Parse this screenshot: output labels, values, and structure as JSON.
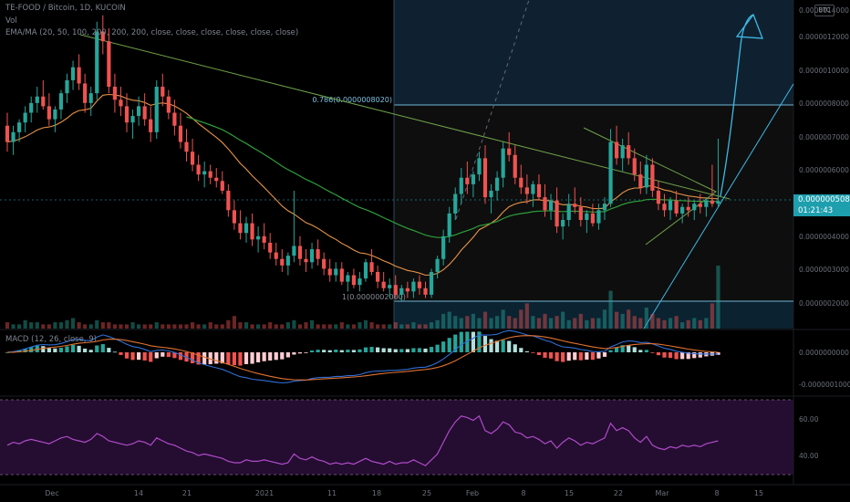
{
  "header": {
    "symbol_line": "TE-FOOD / Bitcoin, 1D, KUCOIN",
    "vol_label": "Vol",
    "ema_line": "EMA/MA (20, 50, 100, 200, 200, 200, close, close, close, close, close, close)",
    "macd_line": "MACD (12, 26, close, 9)",
    "currency_badge": "BTC"
  },
  "price_badge": {
    "value": "0.0000005083",
    "countdown": "01:21:43"
  },
  "colors": {
    "up": "#26a69a",
    "down": "#ef5350",
    "ema_fast": "#e89448",
    "ema_slow": "#2e9e3a",
    "trend": "#6fa34a",
    "fib_level": "#6fb6d6",
    "projection": "#3fb9e6",
    "macd_line": "#2f6fd6",
    "signal_line": "#e0722f",
    "rsi_line": "#b04bc8",
    "rsi_band": "#2a0f3a"
  },
  "chart_data": [
    {
      "type": "candlestick",
      "title": "TE-FOOD / Bitcoin, 1D, KUCOIN",
      "x_ticks": [
        "Dec",
        "14",
        "21",
        "2021",
        "11",
        "18",
        "25",
        "Feb",
        "8",
        "15",
        "22",
        "Mar",
        "8",
        "15"
      ],
      "y_ticks": [
        "0.0000014000",
        "0.0000012000",
        "0.0000010000",
        "0.0000009000",
        "0.0000008000",
        "0.0000007000",
        "0.0000006000",
        "0.0000004000",
        "0.0000003000",
        "0.0000002000",
        "0.0000001000"
      ],
      "fib_labels": [
        "0.786(0.0000008020)",
        "1(0.0000002000)"
      ],
      "last_close": 5.083,
      "value_units": "price x 1e-7 BTC",
      "candles_ohlc": [
        [
          7.4,
          7.8,
          6.6,
          6.9
        ],
        [
          6.9,
          7.4,
          6.5,
          7.2
        ],
        [
          7.2,
          7.6,
          6.9,
          7.5
        ],
        [
          7.5,
          8.0,
          7.2,
          7.8
        ],
        [
          7.8,
          8.3,
          7.5,
          8.1
        ],
        [
          8.1,
          8.6,
          7.8,
          8.3
        ],
        [
          8.3,
          8.8,
          7.9,
          8.0
        ],
        [
          8.0,
          8.4,
          7.4,
          7.6
        ],
        [
          7.6,
          8.0,
          7.2,
          7.9
        ],
        [
          7.9,
          8.5,
          7.6,
          8.4
        ],
        [
          8.4,
          9.0,
          8.1,
          8.8
        ],
        [
          8.8,
          9.4,
          8.5,
          9.2
        ],
        [
          9.2,
          9.6,
          8.5,
          8.7
        ],
        [
          8.7,
          9.0,
          7.8,
          8.1
        ],
        [
          8.1,
          8.6,
          7.7,
          8.4
        ],
        [
          8.4,
          10.6,
          8.2,
          10.3
        ],
        [
          10.3,
          10.8,
          9.6,
          10.0
        ],
        [
          10.0,
          10.4,
          8.4,
          8.6
        ],
        [
          8.6,
          9.0,
          7.8,
          8.2
        ],
        [
          8.2,
          8.6,
          7.7,
          8.0
        ],
        [
          8.0,
          8.4,
          7.2,
          7.5
        ],
        [
          7.5,
          7.9,
          7.0,
          7.7
        ],
        [
          7.7,
          8.3,
          7.4,
          8.0
        ],
        [
          8.0,
          8.4,
          7.4,
          7.6
        ],
        [
          7.6,
          8.0,
          6.9,
          7.2
        ],
        [
          7.2,
          8.8,
          7.0,
          8.6
        ],
        [
          8.6,
          9.0,
          8.0,
          8.3
        ],
        [
          8.3,
          8.5,
          7.6,
          7.8
        ],
        [
          7.8,
          8.2,
          7.1,
          7.4
        ],
        [
          7.4,
          7.8,
          6.7,
          6.9
        ],
        [
          6.9,
          7.3,
          6.3,
          6.6
        ],
        [
          6.6,
          7.0,
          6.0,
          6.2
        ],
        [
          6.2,
          6.5,
          5.7,
          5.9
        ],
        [
          5.9,
          6.3,
          5.5,
          6.0
        ],
        [
          6.0,
          6.2,
          5.6,
          5.8
        ],
        [
          5.8,
          6.1,
          5.5,
          5.7
        ],
        [
          5.7,
          6.0,
          5.3,
          5.4
        ],
        [
          5.4,
          5.6,
          4.6,
          4.8
        ],
        [
          4.8,
          5.1,
          4.2,
          4.4
        ],
        [
          4.4,
          4.8,
          3.9,
          4.1
        ],
        [
          4.1,
          4.6,
          3.8,
          4.4
        ],
        [
          4.4,
          4.7,
          3.7,
          3.9
        ],
        [
          3.9,
          4.3,
          3.5,
          4.0
        ],
        [
          4.0,
          4.4,
          3.6,
          3.8
        ],
        [
          3.8,
          4.1,
          3.3,
          3.5
        ],
        [
          3.5,
          3.8,
          3.1,
          3.3
        ],
        [
          3.3,
          3.6,
          2.9,
          3.1
        ],
        [
          3.1,
          3.5,
          2.8,
          3.4
        ],
        [
          3.4,
          5.4,
          3.2,
          3.7
        ],
        [
          3.7,
          4.0,
          3.1,
          3.3
        ],
        [
          3.3,
          3.6,
          2.9,
          3.2
        ],
        [
          3.2,
          3.8,
          3.0,
          3.6
        ],
        [
          3.6,
          3.9,
          3.1,
          3.3
        ],
        [
          3.3,
          3.5,
          2.8,
          3.0
        ],
        [
          3.0,
          3.3,
          2.6,
          2.8
        ],
        [
          2.8,
          3.2,
          2.6,
          3.0
        ],
        [
          3.0,
          3.2,
          2.5,
          2.6
        ],
        [
          2.6,
          2.9,
          2.3,
          2.8
        ],
        [
          2.8,
          3.0,
          2.4,
          2.5
        ],
        [
          2.5,
          2.9,
          2.3,
          2.7
        ],
        [
          2.7,
          3.3,
          2.6,
          3.2
        ],
        [
          3.2,
          3.6,
          2.8,
          2.9
        ],
        [
          2.9,
          3.1,
          2.4,
          2.6
        ],
        [
          2.6,
          2.9,
          2.3,
          2.4
        ],
        [
          2.4,
          2.7,
          2.1,
          2.5
        ],
        [
          2.5,
          2.8,
          2.1,
          2.2
        ],
        [
          2.2,
          2.5,
          2.0,
          2.4
        ],
        [
          2.4,
          2.6,
          2.1,
          2.3
        ],
        [
          2.3,
          2.7,
          2.1,
          2.6
        ],
        [
          2.6,
          2.8,
          2.2,
          2.4
        ],
        [
          2.4,
          2.6,
          2.1,
          2.2
        ],
        [
          2.2,
          3.0,
          2.1,
          2.9
        ],
        [
          2.9,
          3.4,
          2.7,
          3.3
        ],
        [
          3.3,
          4.2,
          3.1,
          4.0
        ],
        [
          4.0,
          4.9,
          3.8,
          4.7
        ],
        [
          4.7,
          5.5,
          4.5,
          5.3
        ],
        [
          5.3,
          6.1,
          5.0,
          5.8
        ],
        [
          5.8,
          6.3,
          5.3,
          5.6
        ],
        [
          5.6,
          6.0,
          5.2,
          5.9
        ],
        [
          5.9,
          6.6,
          5.7,
          6.4
        ],
        [
          6.4,
          6.8,
          5.0,
          5.2
        ],
        [
          5.2,
          5.6,
          4.7,
          5.4
        ],
        [
          5.4,
          6.0,
          5.1,
          5.8
        ],
        [
          5.8,
          6.9,
          5.5,
          6.7
        ],
        [
          6.7,
          7.2,
          6.3,
          6.5
        ],
        [
          6.5,
          6.8,
          5.6,
          5.8
        ],
        [
          5.8,
          6.2,
          5.3,
          5.5
        ],
        [
          5.5,
          5.9,
          5.0,
          5.3
        ],
        [
          5.3,
          5.7,
          4.9,
          5.6
        ],
        [
          5.6,
          5.9,
          5.1,
          5.2
        ],
        [
          5.2,
          5.6,
          4.6,
          4.8
        ],
        [
          4.8,
          5.3,
          4.5,
          5.1
        ],
        [
          5.1,
          5.5,
          4.1,
          4.3
        ],
        [
          4.3,
          4.7,
          3.9,
          4.5
        ],
        [
          4.5,
          5.3,
          4.3,
          5.0
        ],
        [
          5.0,
          5.5,
          4.7,
          4.9
        ],
        [
          4.9,
          5.2,
          4.3,
          4.5
        ],
        [
          4.5,
          4.8,
          4.1,
          4.7
        ],
        [
          4.7,
          5.0,
          4.3,
          4.4
        ],
        [
          4.4,
          5.0,
          4.2,
          4.8
        ],
        [
          4.8,
          5.2,
          4.5,
          5.0
        ],
        [
          5.0,
          7.3,
          4.9,
          6.9
        ],
        [
          6.9,
          7.4,
          6.2,
          6.4
        ],
        [
          6.4,
          7.0,
          6.0,
          6.8
        ],
        [
          6.8,
          7.2,
          6.2,
          6.4
        ],
        [
          6.4,
          6.7,
          5.7,
          5.9
        ],
        [
          5.9,
          6.3,
          5.3,
          5.5
        ],
        [
          5.5,
          6.5,
          5.3,
          6.2
        ],
        [
          6.2,
          6.4,
          5.2,
          5.4
        ],
        [
          5.4,
          5.7,
          4.8,
          5.0
        ],
        [
          5.0,
          5.3,
          4.6,
          4.8
        ],
        [
          4.8,
          5.2,
          4.5,
          5.1
        ],
        [
          5.1,
          5.4,
          4.6,
          4.7
        ],
        [
          4.7,
          5.0,
          4.4,
          4.9
        ],
        [
          4.9,
          5.2,
          4.6,
          4.8
        ],
        [
          4.8,
          5.1,
          4.5,
          5.0
        ],
        [
          5.0,
          5.3,
          4.7,
          4.9
        ],
        [
          4.9,
          5.2,
          4.6,
          5.1
        ],
        [
          5.1,
          6.2,
          4.9,
          5.0
        ],
        [
          5.0,
          7.0,
          4.9,
          5.083
        ]
      ],
      "volume": [
        3,
        2,
        2,
        4,
        3,
        3,
        2,
        2,
        3,
        3,
        4,
        5,
        3,
        2,
        2,
        4,
        3,
        3,
        2,
        2,
        2,
        3,
        2,
        2,
        2,
        3,
        2,
        2,
        2,
        2,
        2,
        3,
        2,
        2,
        3,
        2,
        2,
        4,
        6,
        3,
        3,
        2,
        2,
        2,
        3,
        2,
        2,
        3,
        4,
        2,
        3,
        4,
        2,
        2,
        2,
        2,
        3,
        2,
        2,
        3,
        4,
        3,
        2,
        2,
        2,
        3,
        2,
        2,
        3,
        2,
        2,
        3,
        4,
        7,
        8,
        6,
        5,
        6,
        7,
        5,
        8,
        5,
        6,
        9,
        6,
        5,
        9,
        12,
        6,
        5,
        7,
        5,
        6,
        8,
        4,
        5,
        7,
        4,
        5,
        5,
        9,
        18,
        8,
        7,
        9,
        6,
        5,
        10,
        7,
        5,
        4,
        5,
        6,
        3,
        4,
        5,
        4,
        5,
        12,
        30
      ]
    },
    {
      "type": "bar",
      "title": "MACD (12, 26, close, 9)",
      "y_ticks": [
        "0.0000000000",
        "-0.0000001000"
      ],
      "y_range": [
        -1.15,
        0.6
      ],
      "value_units": "value x 1e-7"
    },
    {
      "type": "line",
      "title": "RSI",
      "y_ticks": [
        "60.00",
        "40.00"
      ],
      "y_range": [
        25,
        85
      ],
      "band": [
        30,
        70
      ],
      "rsi": [
        52,
        54,
        53,
        55,
        56,
        55,
        54,
        53,
        55,
        57,
        58,
        56,
        55,
        54,
        56,
        60,
        58,
        55,
        54,
        53,
        52,
        53,
        55,
        54,
        52,
        57,
        55,
        53,
        52,
        50,
        48,
        47,
        45,
        46,
        45,
        44,
        43,
        41,
        40,
        40,
        42,
        41,
        41,
        42,
        41,
        40,
        39,
        40,
        46,
        43,
        42,
        44,
        42,
        41,
        39,
        40,
        39,
        40,
        39,
        41,
        43,
        41,
        40,
        39,
        41,
        39,
        40,
        40,
        42,
        40,
        38,
        42,
        46,
        54,
        62,
        68,
        72,
        71,
        69,
        72,
        62,
        60,
        63,
        68,
        66,
        61,
        60,
        57,
        58,
        56,
        53,
        55,
        50,
        54,
        57,
        55,
        52,
        54,
        53,
        55,
        57,
        67,
        62,
        64,
        62,
        57,
        54,
        58,
        52,
        50,
        49,
        51,
        50,
        52,
        51,
        52,
        51,
        53,
        54,
        55
      ]
    }
  ]
}
